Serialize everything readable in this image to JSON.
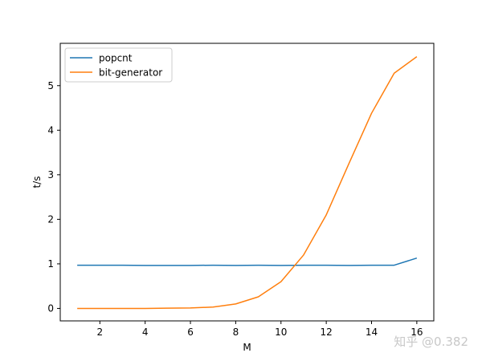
{
  "chart_data": {
    "type": "line",
    "xlabel": "M",
    "ylabel": "t/s",
    "xlim": [
      0.25,
      16.75
    ],
    "ylim": [
      -0.28,
      5.95
    ],
    "xticks": [
      2,
      4,
      6,
      8,
      10,
      12,
      14,
      16
    ],
    "yticks": [
      0,
      1,
      2,
      3,
      4,
      5
    ],
    "x": [
      1,
      2,
      3,
      4,
      5,
      6,
      7,
      8,
      9,
      10,
      11,
      12,
      13,
      14,
      15,
      16
    ],
    "series": [
      {
        "name": "popcnt",
        "color": "#1f77b4",
        "values": [
          0.97,
          0.97,
          0.97,
          0.965,
          0.965,
          0.965,
          0.97,
          0.965,
          0.97,
          0.965,
          0.97,
          0.97,
          0.965,
          0.97,
          0.97,
          1.13
        ]
      },
      {
        "name": "bit-generator",
        "color": "#ff7f0e",
        "values": [
          0.0,
          0.0,
          0.0,
          0.0,
          0.005,
          0.01,
          0.03,
          0.1,
          0.26,
          0.6,
          1.2,
          2.1,
          3.25,
          4.38,
          5.28,
          5.65
        ]
      }
    ],
    "legend_position": "top-left",
    "grid": false
  },
  "watermark": "知乎 @0.382"
}
